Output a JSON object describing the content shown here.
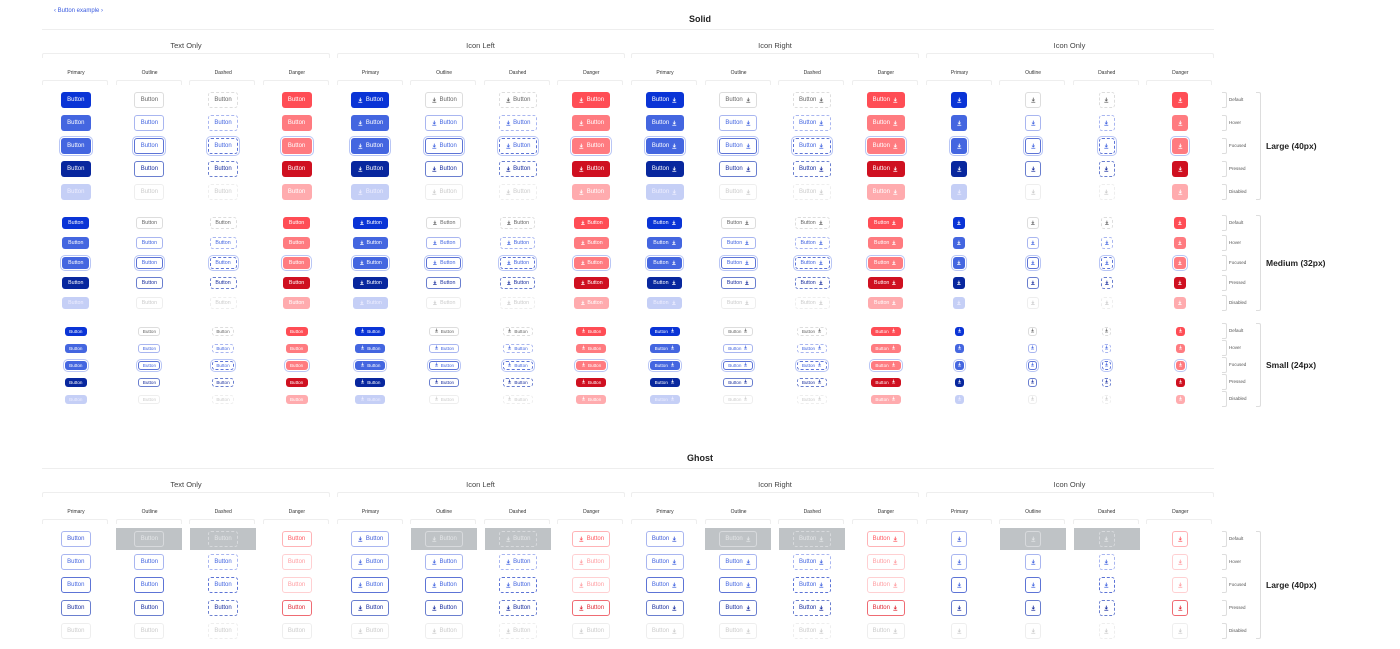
{
  "breadcrumb": {
    "prev": "‹",
    "label": "Button example",
    "next": "›"
  },
  "button_label": "Button",
  "icon": "download-icon",
  "groups": [
    "Text Only",
    "Icon Left",
    "Icon Right",
    "Icon Only"
  ],
  "variants": [
    "Primary",
    "Outline",
    "Dashed",
    "Danger"
  ],
  "states": [
    "Default",
    "Hover",
    "Focused",
    "Pressed",
    "Disabled"
  ],
  "sections": [
    {
      "title": "Solid",
      "sizes": [
        "Large (40px)",
        "Medium (32px)",
        "Small (24px)"
      ]
    },
    {
      "title": "Ghost",
      "sizes": [
        "Large (40px)"
      ]
    }
  ],
  "colors": {
    "primary": "#0a34d6",
    "primary_hover": "#4466e0",
    "primary_pressed": "#08279e",
    "primary_disabled": "#c5cff6",
    "danger": "#ff4d55",
    "danger_hover": "#ff7b80",
    "danger_pressed": "#cf1020",
    "danger_disabled": "#ffabae",
    "ghost_cell": "#bfc3c6"
  }
}
